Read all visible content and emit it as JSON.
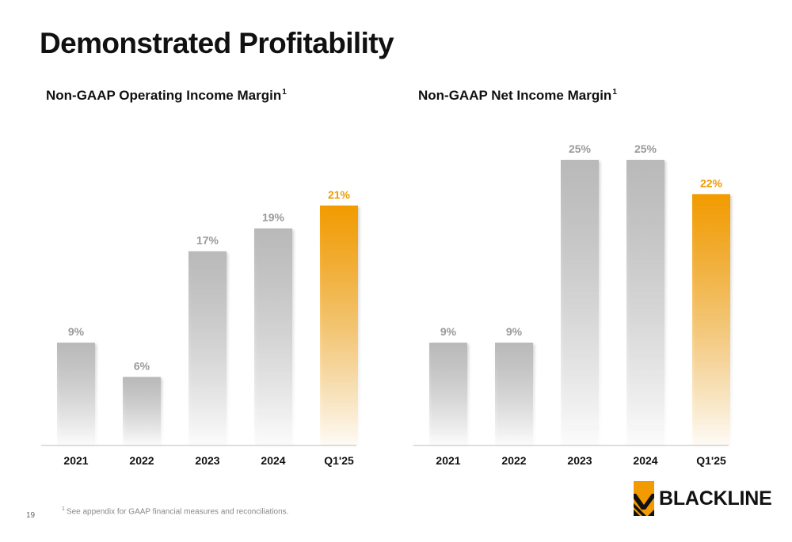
{
  "page": {
    "title": "Demonstrated Profitability",
    "page_number": "19",
    "footnote_marker": "1",
    "footnote": "See appendix for GAAP financial measures and reconciliations.",
    "logo_text": "BLACKLINE"
  },
  "colors": {
    "gray_bar": "#b9b9b9",
    "highlight_bar": "#f29b00",
    "gray_label": "#9a9a9a",
    "highlight_label": "#f29b00"
  },
  "chart_data": [
    {
      "type": "bar",
      "title": "Non-GAAP Operating Income Margin",
      "title_superscript": "1",
      "categories": [
        "2021",
        "2022",
        "2023",
        "2024",
        "Q1'25"
      ],
      "values": [
        9,
        6,
        17,
        19,
        21
      ],
      "value_labels": [
        "9%",
        "6%",
        "17%",
        "19%",
        "21%"
      ],
      "highlight_index": 4,
      "ylim": [
        0,
        25
      ],
      "grid": false,
      "legend": "none"
    },
    {
      "type": "bar",
      "title": "Non-GAAP Net Income Margin",
      "title_superscript": "1",
      "categories": [
        "2021",
        "2022",
        "2023",
        "2024",
        "Q1'25"
      ],
      "values": [
        9,
        9,
        25,
        25,
        22
      ],
      "value_labels": [
        "9%",
        "9%",
        "25%",
        "25%",
        "22%"
      ],
      "highlight_index": 4,
      "ylim": [
        0,
        25
      ],
      "grid": false,
      "legend": "none"
    }
  ]
}
